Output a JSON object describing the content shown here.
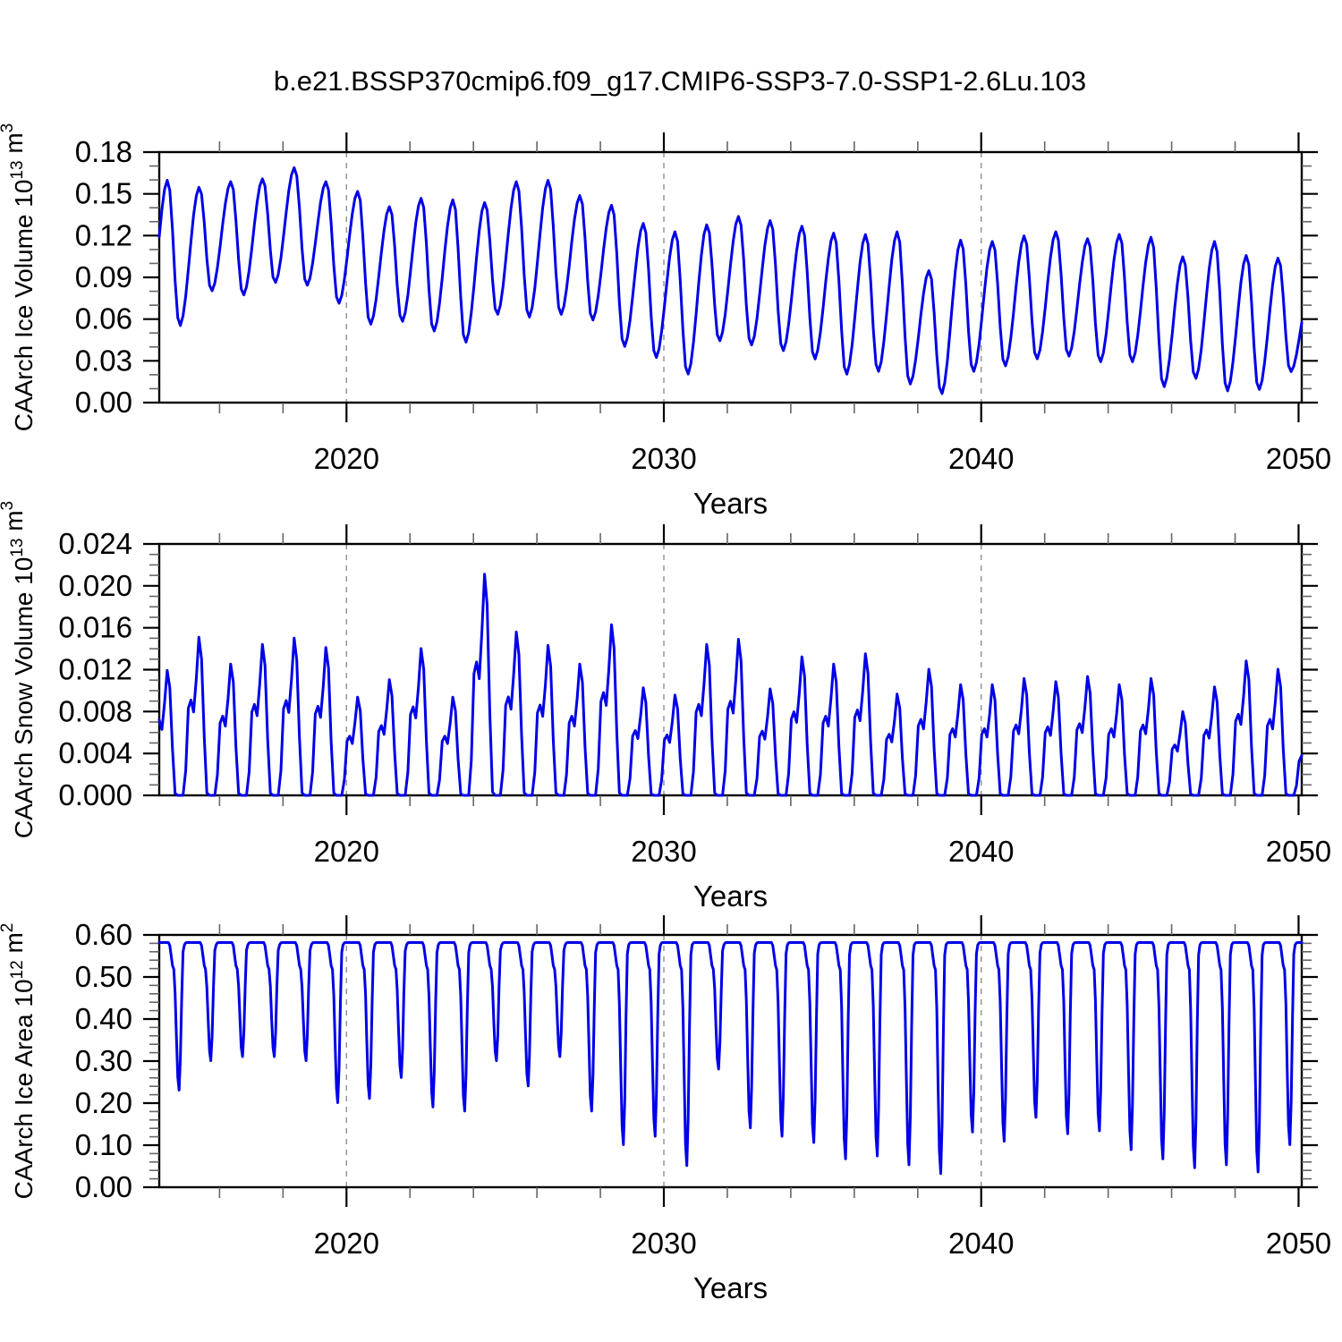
{
  "title": "b.e21.BSSP370cmip6.f09_g17.CMIP6-SSP3-7.0-SSP1-2.6Lu.103",
  "style": {
    "line_color": "#0000e8",
    "grid_color": "#909090",
    "axis_color": "#000000",
    "minor_tick_color": "#666666",
    "background": "#ffffff"
  },
  "chart_data": [
    {
      "type": "line",
      "series_name": "CAArch Ice Volume",
      "ylabel_segments": [
        {
          "t": "CAArch Ice Volume 10",
          "sup": false
        },
        {
          "t": "13",
          "sup": true
        },
        {
          "t": " m",
          "sup": false
        },
        {
          "t": "3",
          "sup": true
        }
      ],
      "xlabel": "Years",
      "x_range": [
        2014.1,
        2050.1
      ],
      "ylim": [
        0,
        0.18
      ],
      "y_major_values": [
        0.0,
        0.03,
        0.06,
        0.09,
        0.12,
        0.15,
        0.18
      ],
      "y_major_labels": [
        "0.00",
        "0.03",
        "0.06",
        "0.09",
        "0.12",
        "0.15",
        "0.18"
      ],
      "y_minor_step": 0.01,
      "x_major_values": [
        2020,
        2030,
        2040,
        2050
      ],
      "x_major_labels": [
        "2020",
        "2030",
        "2040",
        "2050"
      ],
      "x_minor_step": 2,
      "grid_years": [
        2020,
        2030,
        2040
      ],
      "seasonal_model": "peak_trough",
      "peak_season": "spring",
      "trough_season": "autumn",
      "year_start": 2014,
      "annual_spring_peaks": [
        0.16,
        0.155,
        0.159,
        0.161,
        0.169,
        0.159,
        0.152,
        0.141,
        0.147,
        0.146,
        0.144,
        0.159,
        0.16,
        0.149,
        0.142,
        0.129,
        0.123,
        0.128,
        0.134,
        0.131,
        0.127,
        0.122,
        0.121,
        0.123,
        0.095,
        0.117,
        0.116,
        0.12,
        0.123,
        0.118,
        0.121,
        0.119,
        0.105,
        0.116,
        0.106,
        0.104
      ],
      "annual_autumn_troughs": [
        0.055,
        0.08,
        0.077,
        0.086,
        0.084,
        0.071,
        0.056,
        0.058,
        0.051,
        0.043,
        0.063,
        0.061,
        0.063,
        0.059,
        0.04,
        0.032,
        0.02,
        0.044,
        0.041,
        0.037,
        0.031,
        0.02,
        0.022,
        0.013,
        0.006,
        0.022,
        0.026,
        0.031,
        0.033,
        0.029,
        0.029,
        0.011,
        0.017,
        0.008,
        0.009,
        0.022
      ],
      "lead_trough": 0.055,
      "tail_peak": 0.08
    },
    {
      "type": "line",
      "series_name": "CAArch Snow Volume",
      "ylabel_segments": [
        {
          "t": "CAArch Snow Volume 10",
          "sup": false
        },
        {
          "t": "13",
          "sup": true
        },
        {
          "t": " m",
          "sup": false
        },
        {
          "t": "3",
          "sup": true
        }
      ],
      "xlabel": "Years",
      "x_range": [
        2014.1,
        2050.1
      ],
      "ylim": [
        0,
        0.024
      ],
      "y_major_values": [
        0.0,
        0.004,
        0.008,
        0.012,
        0.016,
        0.02,
        0.024
      ],
      "y_major_labels": [
        "0.000",
        "0.004",
        "0.008",
        "0.012",
        "0.016",
        "0.020",
        "0.024"
      ],
      "y_minor_step": 0.001,
      "x_major_values": [
        2020,
        2030,
        2040,
        2050
      ],
      "x_major_labels": [
        "2020",
        "2030",
        "2040",
        "2050"
      ],
      "x_minor_step": 2,
      "grid_years": [
        2020,
        2030,
        2040
      ],
      "seasonal_model": "snow",
      "summer_minimum": 0.0,
      "year_start": 2014,
      "annual_spring_peaks": [
        0.0121,
        0.0153,
        0.0127,
        0.0146,
        0.0152,
        0.0143,
        0.0095,
        0.0112,
        0.0142,
        0.0095,
        0.0214,
        0.0158,
        0.0145,
        0.0127,
        0.0165,
        0.0104,
        0.0097,
        0.0146,
        0.0151,
        0.0103,
        0.0134,
        0.0127,
        0.0137,
        0.0098,
        0.0122,
        0.0107,
        0.0107,
        0.0113,
        0.011,
        0.0115,
        0.0107,
        0.0113,
        0.0081,
        0.0105,
        0.013,
        0.0122
      ],
      "tail_peak": 0.006
    },
    {
      "type": "line",
      "series_name": "CAArch Ice Area",
      "ylabel_segments": [
        {
          "t": "CAArch Ice Area 10",
          "sup": false
        },
        {
          "t": "12",
          "sup": true
        },
        {
          "t": " m",
          "sup": false
        },
        {
          "t": "2",
          "sup": true
        }
      ],
      "xlabel": "Years",
      "x_range": [
        2014.1,
        2050.1
      ],
      "ylim": [
        0,
        0.6
      ],
      "y_major_values": [
        0.0,
        0.1,
        0.2,
        0.3,
        0.4,
        0.5,
        0.6
      ],
      "y_major_labels": [
        "0.00",
        "0.10",
        "0.20",
        "0.30",
        "0.40",
        "0.50",
        "0.60"
      ],
      "y_minor_step": 0.02,
      "x_major_values": [
        2020,
        2030,
        2040,
        2050
      ],
      "x_major_labels": [
        "2020",
        "2030",
        "2040",
        "2050"
      ],
      "x_minor_step": 2,
      "grid_years": [
        2020,
        2030,
        2040
      ],
      "seasonal_model": "summer_dip",
      "winter_flat_max": 0.582,
      "decline_knee": 0.52,
      "year_start": 2014,
      "annual_summer_minima": [
        0.23,
        0.3,
        0.31,
        0.31,
        0.3,
        0.2,
        0.21,
        0.26,
        0.19,
        0.18,
        0.3,
        0.24,
        0.31,
        0.18,
        0.1,
        0.12,
        0.05,
        0.28,
        0.14,
        0.12,
        0.105,
        0.066,
        0.073,
        0.052,
        0.031,
        0.13,
        0.108,
        0.165,
        0.126,
        0.133,
        0.088,
        0.066,
        0.045,
        0.052,
        0.035,
        0.1
      ]
    }
  ]
}
